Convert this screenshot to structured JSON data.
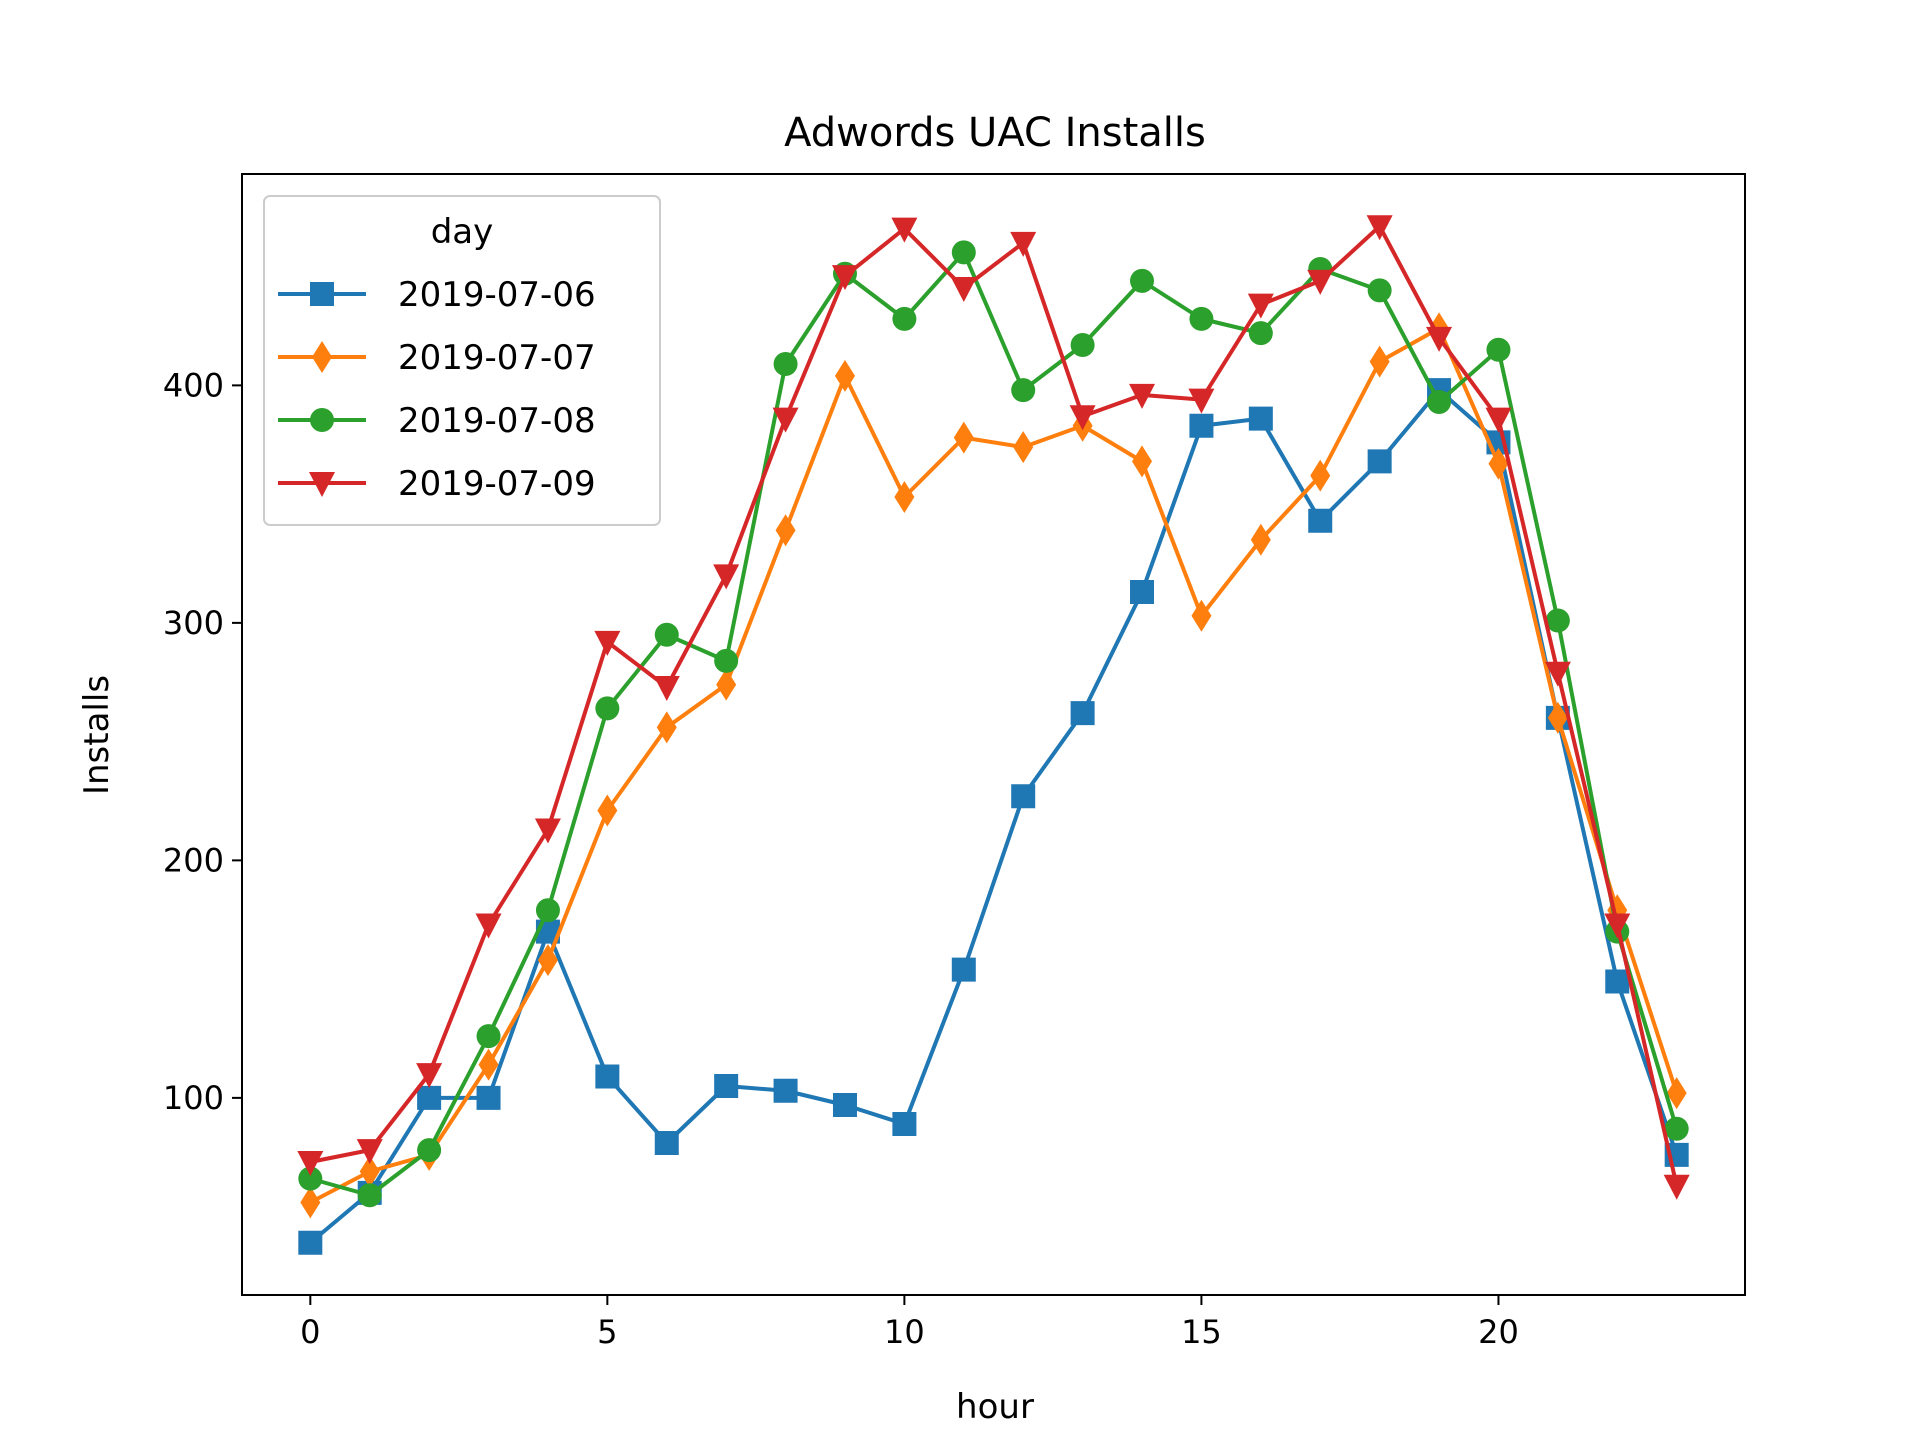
{
  "chart_data": {
    "type": "line",
    "title": "Adwords UAC Installs",
    "xlabel": "hour",
    "ylabel": "Installs",
    "xlim": [
      -1.15,
      24.15
    ],
    "ylim": [
      17,
      489
    ],
    "xticks": [
      0,
      5,
      10,
      15,
      20
    ],
    "yticks": [
      100,
      200,
      300,
      400
    ],
    "grid": false,
    "legend": {
      "title": "day",
      "position": "upper-left"
    },
    "x": [
      0,
      1,
      2,
      3,
      4,
      5,
      6,
      7,
      8,
      9,
      10,
      11,
      12,
      13,
      14,
      15,
      16,
      17,
      18,
      19,
      20,
      21,
      22,
      23
    ],
    "series": [
      {
        "name": "2019-07-06",
        "color": "#1f77b4",
        "marker": "square",
        "values": [
          39,
          60,
          100,
          100,
          170,
          109,
          81,
          105,
          103,
          97,
          89,
          154,
          227,
          262,
          313,
          383,
          386,
          343,
          368,
          398,
          376,
          260,
          149,
          76
        ]
      },
      {
        "name": "2019-07-07",
        "color": "#ff7f0e",
        "marker": "diamond",
        "values": [
          56,
          69,
          76,
          114,
          158,
          221,
          256,
          274,
          339,
          404,
          353,
          378,
          374,
          383,
          368,
          303,
          335,
          362,
          410,
          424,
          367,
          260,
          179,
          102
        ]
      },
      {
        "name": "2019-07-08",
        "color": "#2ca02c",
        "marker": "circle",
        "values": [
          66,
          59,
          78,
          126,
          179,
          264,
          295,
          284,
          409,
          447,
          428,
          456,
          398,
          417,
          444,
          428,
          422,
          449,
          440,
          393,
          415,
          301,
          170,
          87
        ]
      },
      {
        "name": "2019-07-09",
        "color": "#d62728",
        "marker": "triangle-down",
        "values": [
          73,
          78,
          110,
          173,
          213,
          292,
          273,
          320,
          386,
          446,
          466,
          441,
          460,
          387,
          396,
          394,
          434,
          444,
          467,
          420,
          386,
          279,
          173,
          63
        ]
      }
    ]
  }
}
